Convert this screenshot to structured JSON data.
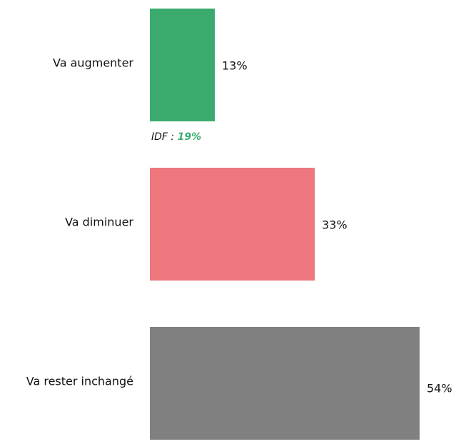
{
  "chart_data": {
    "type": "bar",
    "orientation": "horizontal",
    "categories": [
      "Va augmenter",
      "Va diminuer",
      "Va rester inchangé"
    ],
    "values": [
      13,
      33,
      54
    ],
    "value_labels": [
      "13%",
      "33%",
      "54%"
    ],
    "colors": [
      "#3aab6d",
      "#ee767d",
      "#808080"
    ],
    "annotation": {
      "prefix": "IDF :",
      "highlight": "19%",
      "highlight_color": "#3aab6d"
    }
  }
}
